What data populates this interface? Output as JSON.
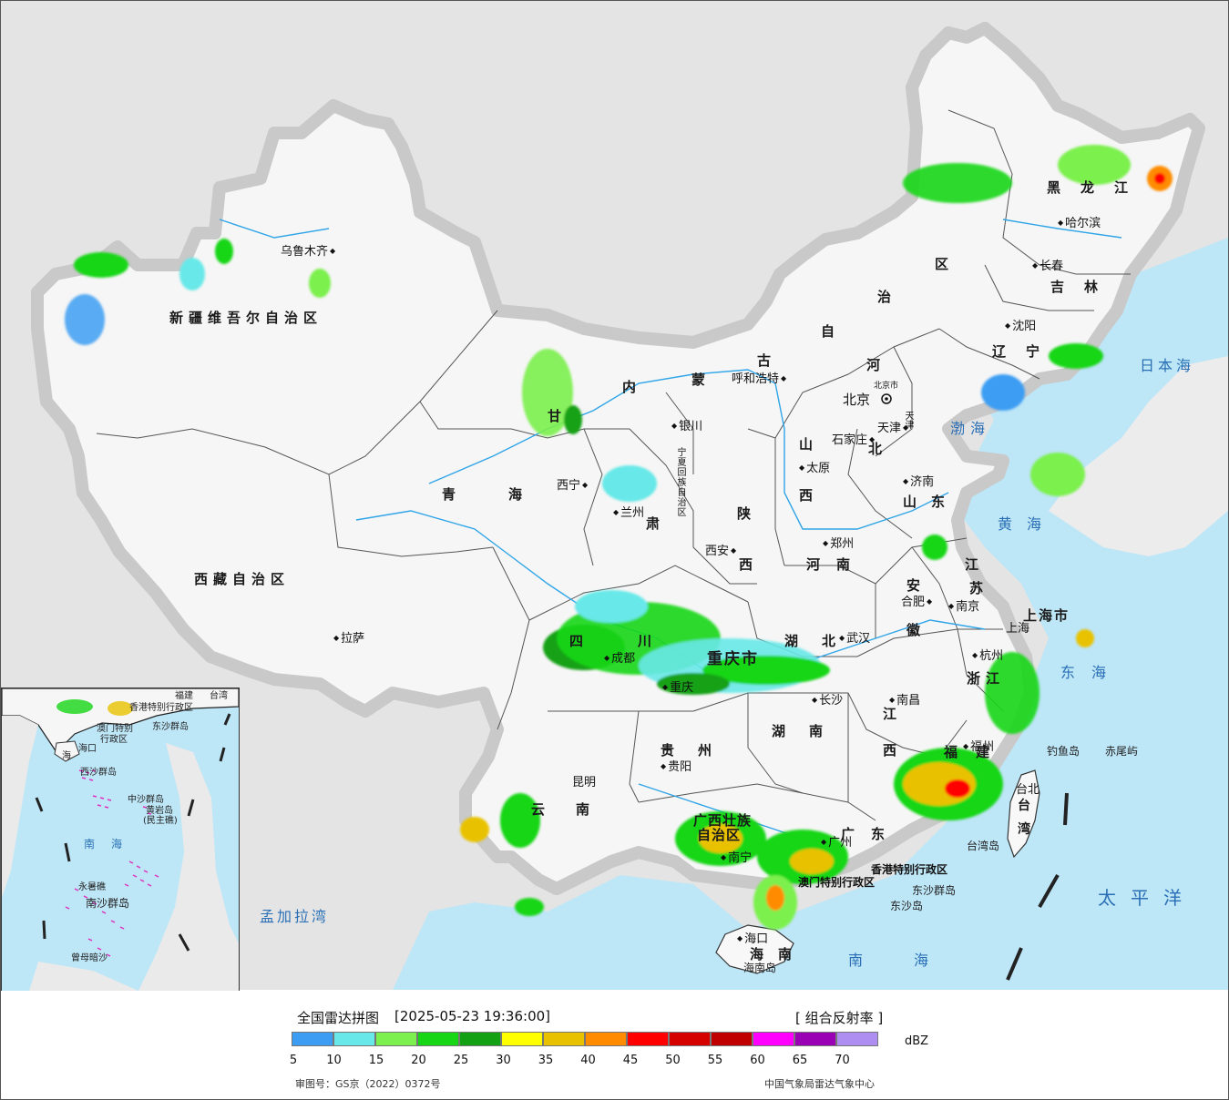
{
  "legend": {
    "title": "全国雷达拼图",
    "timestamp": "[2025-05-23 19:36:00]",
    "product": "[ 组合反射率 ]",
    "unit": "dBZ",
    "scale": [
      {
        "v": "5",
        "color": "#3d9df2"
      },
      {
        "v": "10",
        "color": "#68e8e8"
      },
      {
        "v": "15",
        "color": "#7cf04e"
      },
      {
        "v": "20",
        "color": "#16d616"
      },
      {
        "v": "25",
        "color": "#13a113"
      },
      {
        "v": "30",
        "color": "#ffff00"
      },
      {
        "v": "35",
        "color": "#e8c200"
      },
      {
        "v": "40",
        "color": "#ff8c00"
      },
      {
        "v": "45",
        "color": "#ff0000"
      },
      {
        "v": "50",
        "color": "#d50000"
      },
      {
        "v": "55",
        "color": "#c00000"
      },
      {
        "v": "60",
        "color": "#ff00ff"
      },
      {
        "v": "65",
        "color": "#9a00b4"
      },
      {
        "v": "70",
        "color": "#ae8ef0"
      }
    ],
    "review_no": "审图号：GS京（2022）0372号",
    "source": "中国气象局雷达气象中心"
  },
  "provinces": [
    {
      "id": "xinjiang",
      "text": "新疆维吾尔自治区"
    },
    {
      "id": "xizang",
      "text": "西藏自治区"
    },
    {
      "id": "qinghai-a",
      "text": "青"
    },
    {
      "id": "qinghai-b",
      "text": "海"
    },
    {
      "id": "gansu-a",
      "text": "甘"
    },
    {
      "id": "gansu-b",
      "text": "肃"
    },
    {
      "id": "nm-1",
      "text": "内"
    },
    {
      "id": "nm-2",
      "text": "蒙"
    },
    {
      "id": "nm-3",
      "text": "古"
    },
    {
      "id": "nm-4",
      "text": "自"
    },
    {
      "id": "nm-5",
      "text": "治"
    },
    {
      "id": "nm-6",
      "text": "区"
    },
    {
      "id": "hlj",
      "text": "黑龙江"
    },
    {
      "id": "jilin",
      "text": "吉林"
    },
    {
      "id": "liaoning",
      "text": "辽宁"
    },
    {
      "id": "hebei-a",
      "text": "河"
    },
    {
      "id": "hebei-b",
      "text": "北"
    },
    {
      "id": "shanxi-a",
      "text": "山"
    },
    {
      "id": "shanxi-b",
      "text": "西"
    },
    {
      "id": "shaanxi-a",
      "text": "陕"
    },
    {
      "id": "shaanxi-b",
      "text": "西"
    },
    {
      "id": "shandong",
      "text": "山东"
    },
    {
      "id": "henan",
      "text": "河南"
    },
    {
      "id": "jiangsu-a",
      "text": "江"
    },
    {
      "id": "jiangsu-b",
      "text": "苏"
    },
    {
      "id": "anhui-a",
      "text": "安"
    },
    {
      "id": "anhui-b",
      "text": "徽"
    },
    {
      "id": "shanghai",
      "text": "上海市"
    },
    {
      "id": "zhejiang",
      "text": "浙江"
    },
    {
      "id": "sichuan",
      "text": "四川"
    },
    {
      "id": "chongqing",
      "text": "重庆市"
    },
    {
      "id": "hubei",
      "text": "湖北"
    },
    {
      "id": "hunan",
      "text": "湖南"
    },
    {
      "id": "jiangxi-a",
      "text": "江"
    },
    {
      "id": "jiangxi-b",
      "text": "西"
    },
    {
      "id": "fujian",
      "text": "福建"
    },
    {
      "id": "guizhou",
      "text": "贵州"
    },
    {
      "id": "yunnan",
      "text": "云南"
    },
    {
      "id": "guangxi-a",
      "text": "广西壮族"
    },
    {
      "id": "guangxi-b",
      "text": "自治区"
    },
    {
      "id": "guangdong",
      "text": "广东"
    },
    {
      "id": "hainan",
      "text": "海南"
    },
    {
      "id": "taiwan-a",
      "text": "台"
    },
    {
      "id": "taiwan-b",
      "text": "湾"
    },
    {
      "id": "ningxia",
      "text": "宁夏回族自治区"
    },
    {
      "id": "beijing-m",
      "text": "北京市"
    },
    {
      "id": "tianjin-m",
      "text": "天津"
    },
    {
      "id": "hk",
      "text": "香港特别行政区"
    },
    {
      "id": "macao",
      "text": "澳门特别行政区"
    }
  ],
  "cities": [
    {
      "id": "urumqi",
      "text": "乌鲁木齐"
    },
    {
      "id": "lhasa",
      "text": "拉萨"
    },
    {
      "id": "xining",
      "text": "西宁"
    },
    {
      "id": "lanzhou",
      "text": "兰州"
    },
    {
      "id": "yinchuan",
      "text": "银川"
    },
    {
      "id": "hohhot",
      "text": "呼和浩特"
    },
    {
      "id": "harbin",
      "text": "哈尔滨"
    },
    {
      "id": "changchun",
      "text": "长春"
    },
    {
      "id": "shenyang",
      "text": "沈阳"
    },
    {
      "id": "beijing",
      "text": "北京"
    },
    {
      "id": "tianjin",
      "text": "天津"
    },
    {
      "id": "shijiazhuang",
      "text": "石家庄"
    },
    {
      "id": "taiyuan",
      "text": "太原"
    },
    {
      "id": "jinan",
      "text": "济南"
    },
    {
      "id": "zhengzhou",
      "text": "郑州"
    },
    {
      "id": "xian",
      "text": "西安"
    },
    {
      "id": "hefei",
      "text": "合肥"
    },
    {
      "id": "nanjing",
      "text": "南京"
    },
    {
      "id": "shanghai-c",
      "text": "上海"
    },
    {
      "id": "hangzhou",
      "text": "杭州"
    },
    {
      "id": "wuhan",
      "text": "武汉"
    },
    {
      "id": "chengdu",
      "text": "成都"
    },
    {
      "id": "chongqing-c",
      "text": "重庆"
    },
    {
      "id": "changsha",
      "text": "长沙"
    },
    {
      "id": "nanchang",
      "text": "南昌"
    },
    {
      "id": "fuzhou",
      "text": "福州"
    },
    {
      "id": "guiyang",
      "text": "贵阳"
    },
    {
      "id": "kunming",
      "text": "昆明"
    },
    {
      "id": "nanning",
      "text": "南宁"
    },
    {
      "id": "guangzhou",
      "text": "广州"
    },
    {
      "id": "haikou",
      "text": "海口"
    },
    {
      "id": "taibei",
      "text": "台北"
    }
  ],
  "seas": [
    {
      "id": "bohai",
      "text": "渤海"
    },
    {
      "id": "huanghai",
      "text": "黄海"
    },
    {
      "id": "donghai",
      "text": "东海"
    },
    {
      "id": "nanhai",
      "text": "南海"
    },
    {
      "id": "ribenhai",
      "text": "日本海"
    },
    {
      "id": "taipingyang",
      "text": "太平洋"
    },
    {
      "id": "mengjiala",
      "text": "孟加拉湾"
    }
  ],
  "islands": [
    {
      "id": "diaoyu",
      "text": "钓鱼岛"
    },
    {
      "id": "chiwei",
      "text": "赤尾屿"
    },
    {
      "id": "taiwandao",
      "text": "台湾岛"
    },
    {
      "id": "dongsha-q",
      "text": "东沙群岛"
    },
    {
      "id": "dongsha-d",
      "text": "东沙岛"
    },
    {
      "id": "hainandao",
      "text": "海南岛"
    }
  ],
  "inset": {
    "labels": [
      {
        "id": "i-fujian",
        "text": "福建"
      },
      {
        "id": "i-taiwan",
        "text": "台湾"
      },
      {
        "id": "i-hk",
        "text": "香港特别行政区"
      },
      {
        "id": "i-macao-a",
        "text": "澳门特别"
      },
      {
        "id": "i-macao-b",
        "text": "行政区"
      },
      {
        "id": "i-dongsha",
        "text": "东沙群岛"
      },
      {
        "id": "i-haikou",
        "text": "海口"
      },
      {
        "id": "i-hainan",
        "text": "海"
      },
      {
        "id": "i-xisha",
        "text": "西沙群岛"
      },
      {
        "id": "i-zhongsha",
        "text": "中沙群岛"
      },
      {
        "id": "i-huangyan-a",
        "text": "黄岩岛"
      },
      {
        "id": "i-huangyan-b",
        "text": "(民主礁)"
      },
      {
        "id": "i-nanhai",
        "text": "南　海"
      },
      {
        "id": "i-yongshu",
        "text": "永暑礁"
      },
      {
        "id": "i-nansha",
        "text": "南沙群岛"
      },
      {
        "id": "i-zengmu",
        "text": "曾母暗沙"
      }
    ]
  }
}
